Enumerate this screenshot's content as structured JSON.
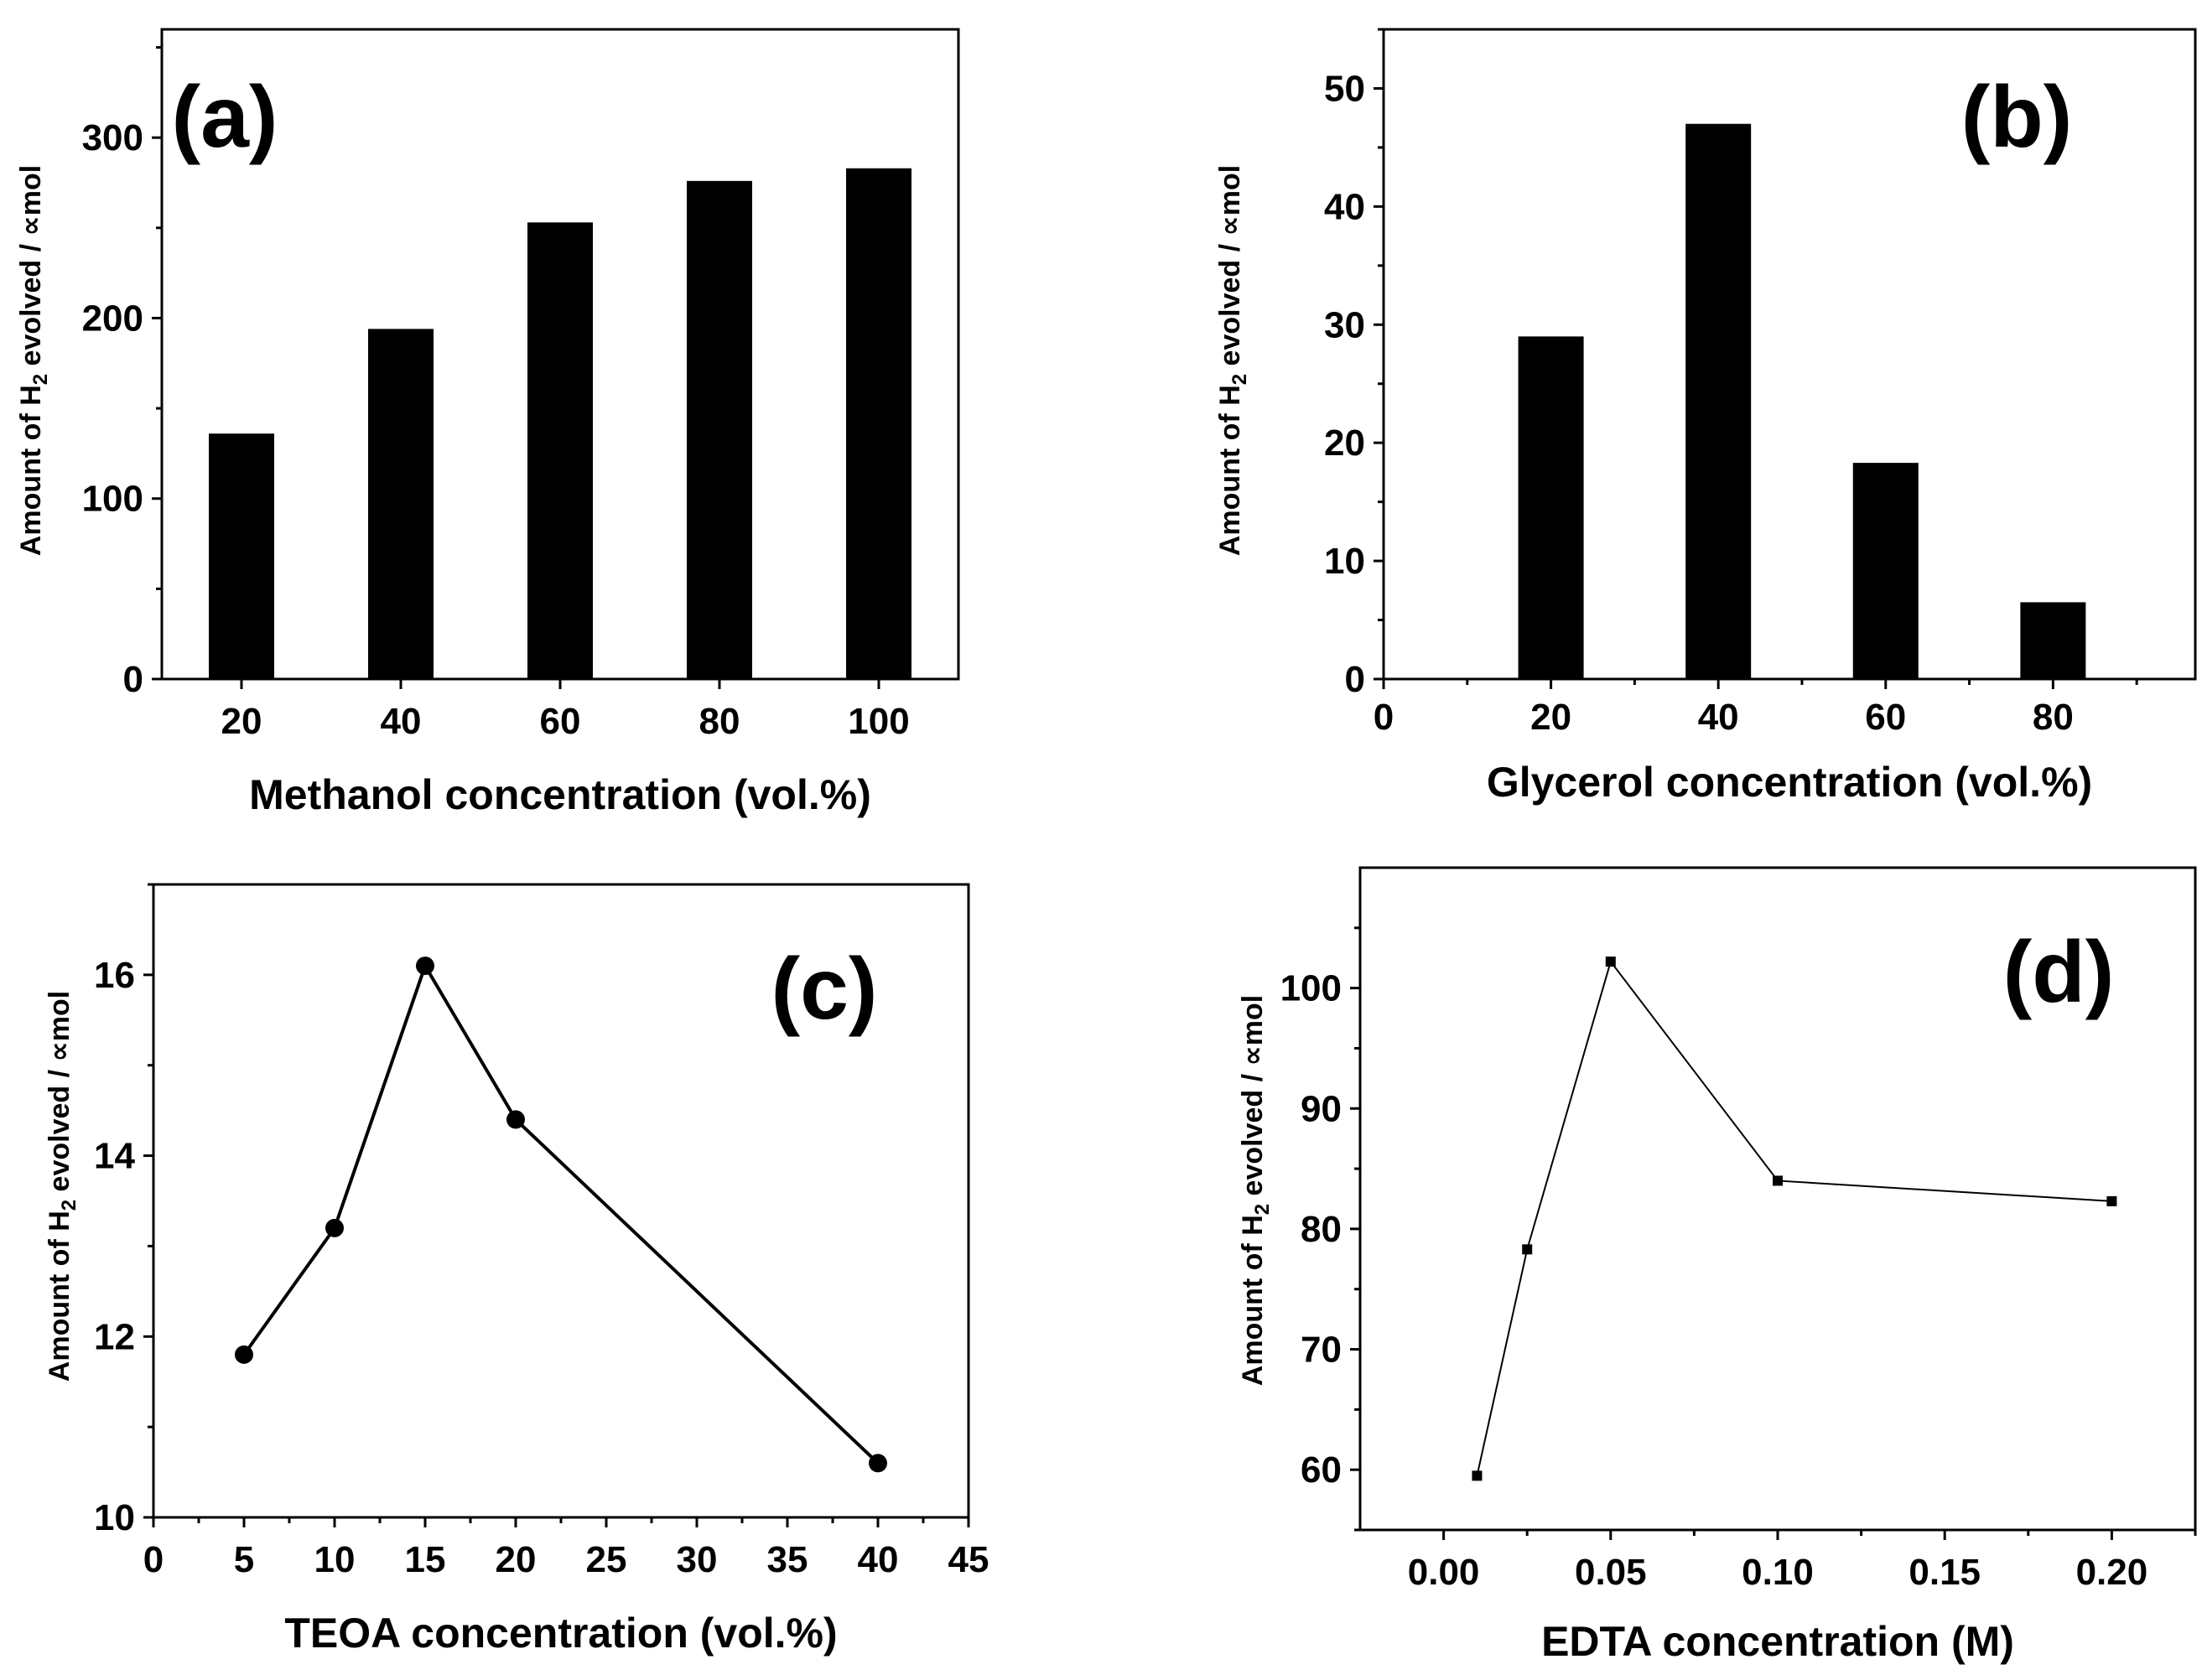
{
  "chart_data": [
    {
      "type": "bar",
      "panel_label": "(a)",
      "categories": [
        "20",
        "40",
        "60",
        "80",
        "100"
      ],
      "values": [
        136,
        194,
        253,
        276,
        283
      ],
      "xlabel": "Methanol concentration (vol.%)",
      "ylabel_parts": [
        "Amount of H",
        "2",
        " evolved / ",
        "∝",
        "mol"
      ],
      "ylim": [
        0,
        360
      ],
      "yticks": [
        "0",
        "100",
        "200",
        "300"
      ],
      "legend": "none"
    },
    {
      "type": "bar",
      "panel_label": "(b)",
      "x": [
        20,
        40,
        60,
        80
      ],
      "values": [
        29,
        47,
        18.3,
        6.5
      ],
      "xlabel": "Glycerol concentration (vol.%)",
      "ylabel_parts": [
        "Amount of H",
        "2",
        " evolved / ",
        "∝",
        "mol"
      ],
      "xlim": [
        0,
        97
      ],
      "xticks": [
        "0",
        "20",
        "40",
        "60",
        "80"
      ],
      "ylim": [
        0,
        55
      ],
      "yticks": [
        "0",
        "10",
        "20",
        "30",
        "40",
        "50"
      ],
      "legend": "none"
    },
    {
      "type": "line",
      "panel_label": "(c)",
      "x": [
        5,
        10,
        15,
        20,
        40
      ],
      "values": [
        11.8,
        13.2,
        16.1,
        14.4,
        10.6
      ],
      "marker": "circle",
      "xlabel": "TEOA concentration (vol.%)",
      "ylabel_parts": [
        "Amount of H",
        "2",
        " evolved / ",
        "∝",
        "mol"
      ],
      "xlim": [
        0,
        45
      ],
      "xticks": [
        "0",
        "5",
        "10",
        "15",
        "20",
        "25",
        "30",
        "35",
        "40",
        "45"
      ],
      "ylim": [
        10,
        17
      ],
      "yticks": [
        "10",
        "12",
        "14",
        "16"
      ],
      "legend": "none"
    },
    {
      "type": "line",
      "panel_label": "(d)",
      "x": [
        0.01,
        0.025,
        0.05,
        0.1,
        0.2
      ],
      "values": [
        59.5,
        78.3,
        102.2,
        84,
        82.3
      ],
      "marker": "square",
      "xlabel": "EDTA concentration (M)",
      "ylabel_parts": [
        "Amount  of H",
        "2",
        " evolved / ",
        "∝",
        "mol"
      ],
      "xlim": [
        -0.025,
        0.225
      ],
      "xticks": [
        "0.00",
        "0.05",
        "0.10",
        "0.15",
        "0.20"
      ],
      "ylim": [
        55,
        110
      ],
      "yticks": [
        "60",
        "70",
        "80",
        "90",
        "100"
      ],
      "legend": "none"
    }
  ]
}
